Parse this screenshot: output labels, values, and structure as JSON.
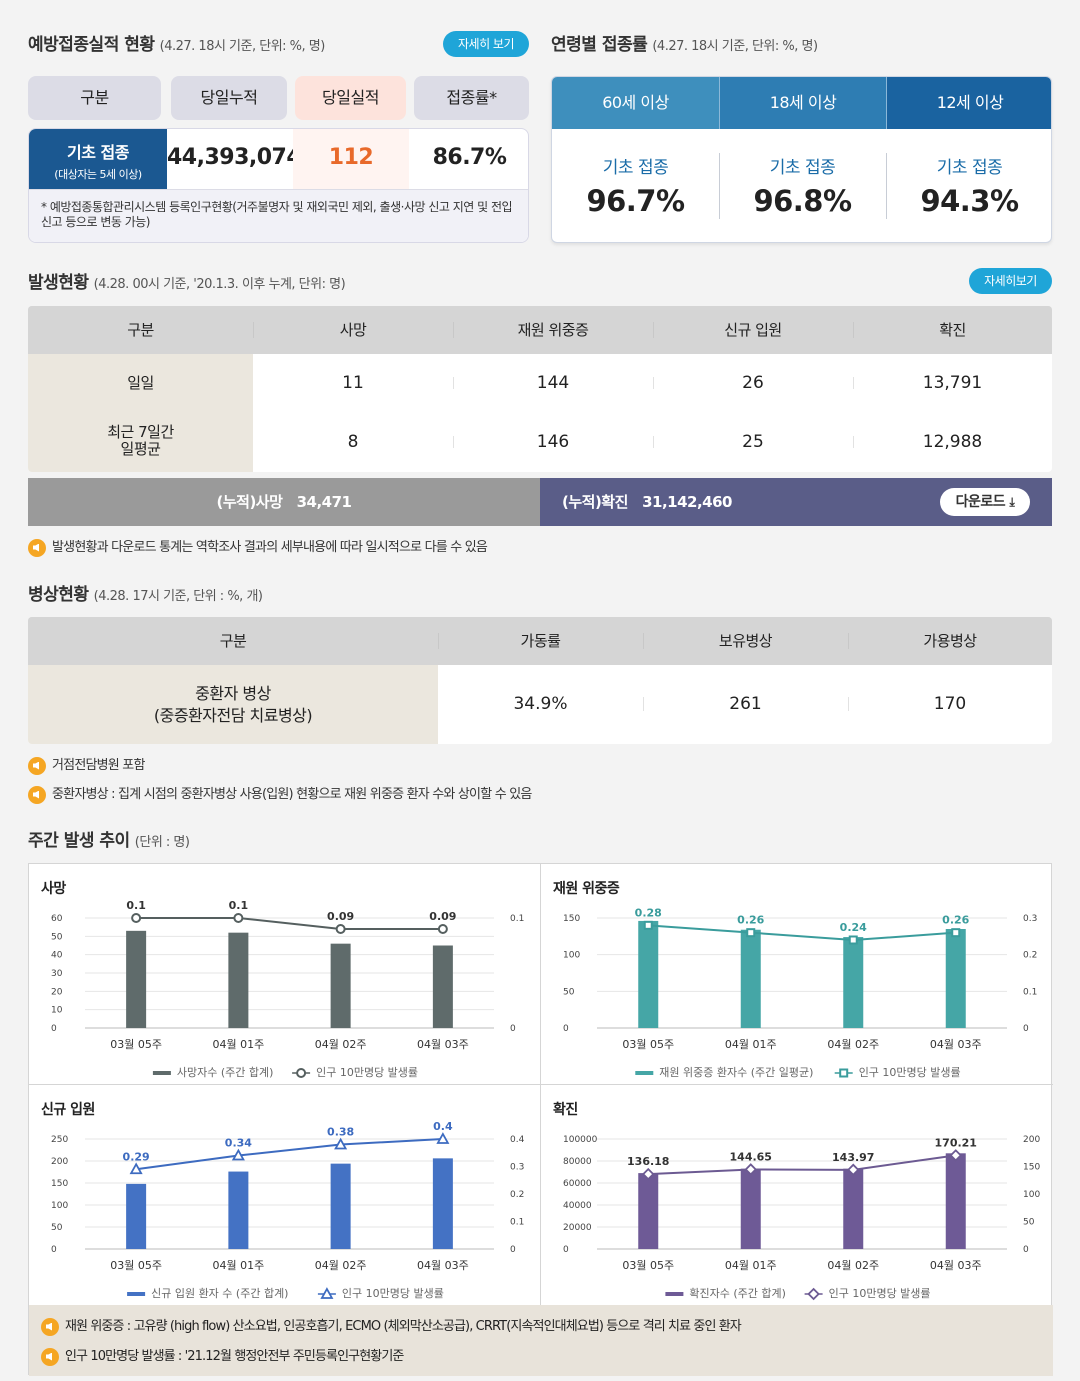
{
  "vaccination": {
    "title": "예방접종실적 현황",
    "subtitle": "(4.27. 18시 기준, 단위: %, 명)",
    "detail_btn": "자세히 보기",
    "headers": [
      "구분",
      "당일누적",
      "당일실적",
      "접종률*"
    ],
    "row_label": "기초 접종",
    "row_sublabel": "(대상자는 5세 이상)",
    "cumulative": "44,393,074",
    "today": "112",
    "rate": "86.7%",
    "note": "* 예방접종통합관리시스템 등록인구현황(거주불명자 및 재외국민 제외, 출생·사망 신고 지연 및 전입신고 등으로 변동 가능)"
  },
  "age_rates": {
    "title": "연령별 접종률",
    "subtitle": "(4.27. 18시 기준, 단위: %, 명)",
    "tabs": [
      "60세 이상",
      "18세 이상",
      "12세 이상"
    ],
    "cols": [
      {
        "label": "기초 접종",
        "value": "96.7%"
      },
      {
        "label": "기초 접종",
        "value": "96.8%"
      },
      {
        "label": "기초 접종",
        "value": "94.3%"
      }
    ],
    "colors": {
      "tab1": "#3e8fbd",
      "tab2": "#2e7db3",
      "tab3": "#1a63a0"
    }
  },
  "occurrence": {
    "title": "발생현황",
    "subtitle": "(4.28. 00시 기준, '20.1.3. 이후 누계, 단위: 명)",
    "detail_btn": "자세히보기",
    "headers": [
      "구분",
      "사망",
      "재원 위중증",
      "신규 입원",
      "확진"
    ],
    "rows": [
      {
        "label": "일일",
        "values": [
          "11",
          "144",
          "26",
          "13,791"
        ]
      },
      {
        "label": "최근 7일간\n일평균",
        "values": [
          "8",
          "146",
          "25",
          "12,988"
        ]
      }
    ],
    "cum_death_label": "(누적)사망",
    "cum_death": "34,471",
    "cum_conf_label": "(누적)확진",
    "cum_conf": "31,142,460",
    "download": "다운로드",
    "notice": "발생현황과 다운로드 통계는 역학조사 결과의 세부내용에 따라 일시적으로 다를 수 있음"
  },
  "beds": {
    "title": "병상현황",
    "subtitle": "(4.28. 17시 기준, 단위 : %, 개)",
    "headers": [
      "구분",
      "가동률",
      "보유병상",
      "가용병상"
    ],
    "row_label": "중환자 병상\n(중증환자전담 치료병상)",
    "values": [
      "34.9%",
      "261",
      "170"
    ],
    "notice1": "거점전담병원 포함",
    "notice2": "중환자병상 : 집계 시점의 중환자병상 사용(입원) 현황으로 재원 위중증 환자 수와 상이할 수 있음"
  },
  "weekly": {
    "title": "주간 발생 추이",
    "subtitle": "(단위 : 명)",
    "footnote1": "재원 위중증 : 고유량 (high flow) 산소요법, 인공호흡기, ECMO (체외막산소공급), CRRT(지속적인대체요법) 등으로 격리 치료 중인 환자",
    "footnote2": "인구 10만명당 발생률 : '21.12월 행정안전부 주민등록인구현황기준"
  },
  "chart_data": [
    {
      "type": "bar",
      "title": "사망",
      "categories": [
        "03월 05주",
        "04월 01주",
        "04월 02주",
        "04월 03주"
      ],
      "series": [
        {
          "name": "사망자수 (주간 합계)",
          "type": "bar",
          "values": [
            53,
            52,
            46,
            45
          ]
        },
        {
          "name": "인구 10만명당 발생률",
          "type": "line",
          "values": [
            0.1,
            0.1,
            0.09,
            0.09
          ],
          "labels": [
            "0.1",
            "0.1",
            "0.09",
            "0.09"
          ]
        }
      ],
      "ylim": [
        0,
        60
      ],
      "yticks": [
        0,
        10,
        20,
        30,
        40,
        50,
        60
      ],
      "y2lim": [
        0,
        0.1
      ],
      "y2ticks": [
        "0",
        "0.1"
      ],
      "colors": {
        "bar": "#5f6b6b",
        "line": "#555f5f"
      },
      "marker": "circle"
    },
    {
      "type": "bar",
      "title": "재원 위중증",
      "categories": [
        "03월 05주",
        "04월 01주",
        "04월 02주",
        "04월 03주"
      ],
      "series": [
        {
          "name": "재원 위중증 환자수 (주간 일평균)",
          "type": "bar",
          "values": [
            146,
            134,
            124,
            135
          ]
        },
        {
          "name": "인구 10만명당 발생률",
          "type": "line",
          "values": [
            0.28,
            0.26,
            0.24,
            0.26
          ],
          "labels": [
            "0.28",
            "0.26",
            "0.24",
            "0.26"
          ]
        }
      ],
      "ylim": [
        0,
        150
      ],
      "yticks": [
        0,
        50,
        100,
        150
      ],
      "y2lim": [
        0,
        0.3
      ],
      "y2ticks": [
        "0",
        "0.1",
        "0.2",
        "0.3"
      ],
      "colors": {
        "bar": "#45a6a6",
        "line": "#3a9c9c"
      },
      "marker": "square"
    },
    {
      "type": "bar",
      "title": "신규 입원",
      "categories": [
        "03월 05주",
        "04월 01주",
        "04월 02주",
        "04월 03주"
      ],
      "series": [
        {
          "name": "신규 입원 환자 수 (주간 합계)",
          "type": "bar",
          "values": [
            148,
            176,
            194,
            206
          ]
        },
        {
          "name": "인구 10만명당 발생률",
          "type": "line",
          "values": [
            0.29,
            0.34,
            0.38,
            0.4
          ],
          "labels": [
            "0.29",
            "0.34",
            "0.38",
            "0.4"
          ]
        }
      ],
      "ylim": [
        0,
        250
      ],
      "yticks": [
        0,
        50,
        100,
        150,
        200,
        250
      ],
      "y2lim": [
        0,
        0.4
      ],
      "y2ticks": [
        "0",
        "0.1",
        "0.2",
        "0.3",
        "0.4"
      ],
      "colors": {
        "bar": "#4472c4",
        "line": "#3d6bc0"
      },
      "marker": "triangle"
    },
    {
      "type": "bar",
      "title": "확진",
      "categories": [
        "03월 05주",
        "04월 01주",
        "04월 02주",
        "04월 03주"
      ],
      "series": [
        {
          "name": "확진자수 (주간 합계)",
          "type": "bar",
          "values": [
            69000,
            73000,
            73000,
            87000
          ]
        },
        {
          "name": "인구 10만명당 발생률",
          "type": "line",
          "values": [
            136.18,
            144.65,
            143.97,
            170.21
          ],
          "labels": [
            "136.18",
            "144.65",
            "143.97",
            "170.21"
          ]
        }
      ],
      "ylim": [
        0,
        100000
      ],
      "yticks": [
        "0",
        "20000",
        "40000",
        "60000",
        "80000",
        "100000"
      ],
      "y2lim": [
        0,
        200
      ],
      "y2ticks": [
        "0",
        "50",
        "100",
        "150",
        "200"
      ],
      "colors": {
        "bar": "#6e5a96",
        "line": "#6c5a92"
      },
      "marker": "diamond"
    }
  ]
}
